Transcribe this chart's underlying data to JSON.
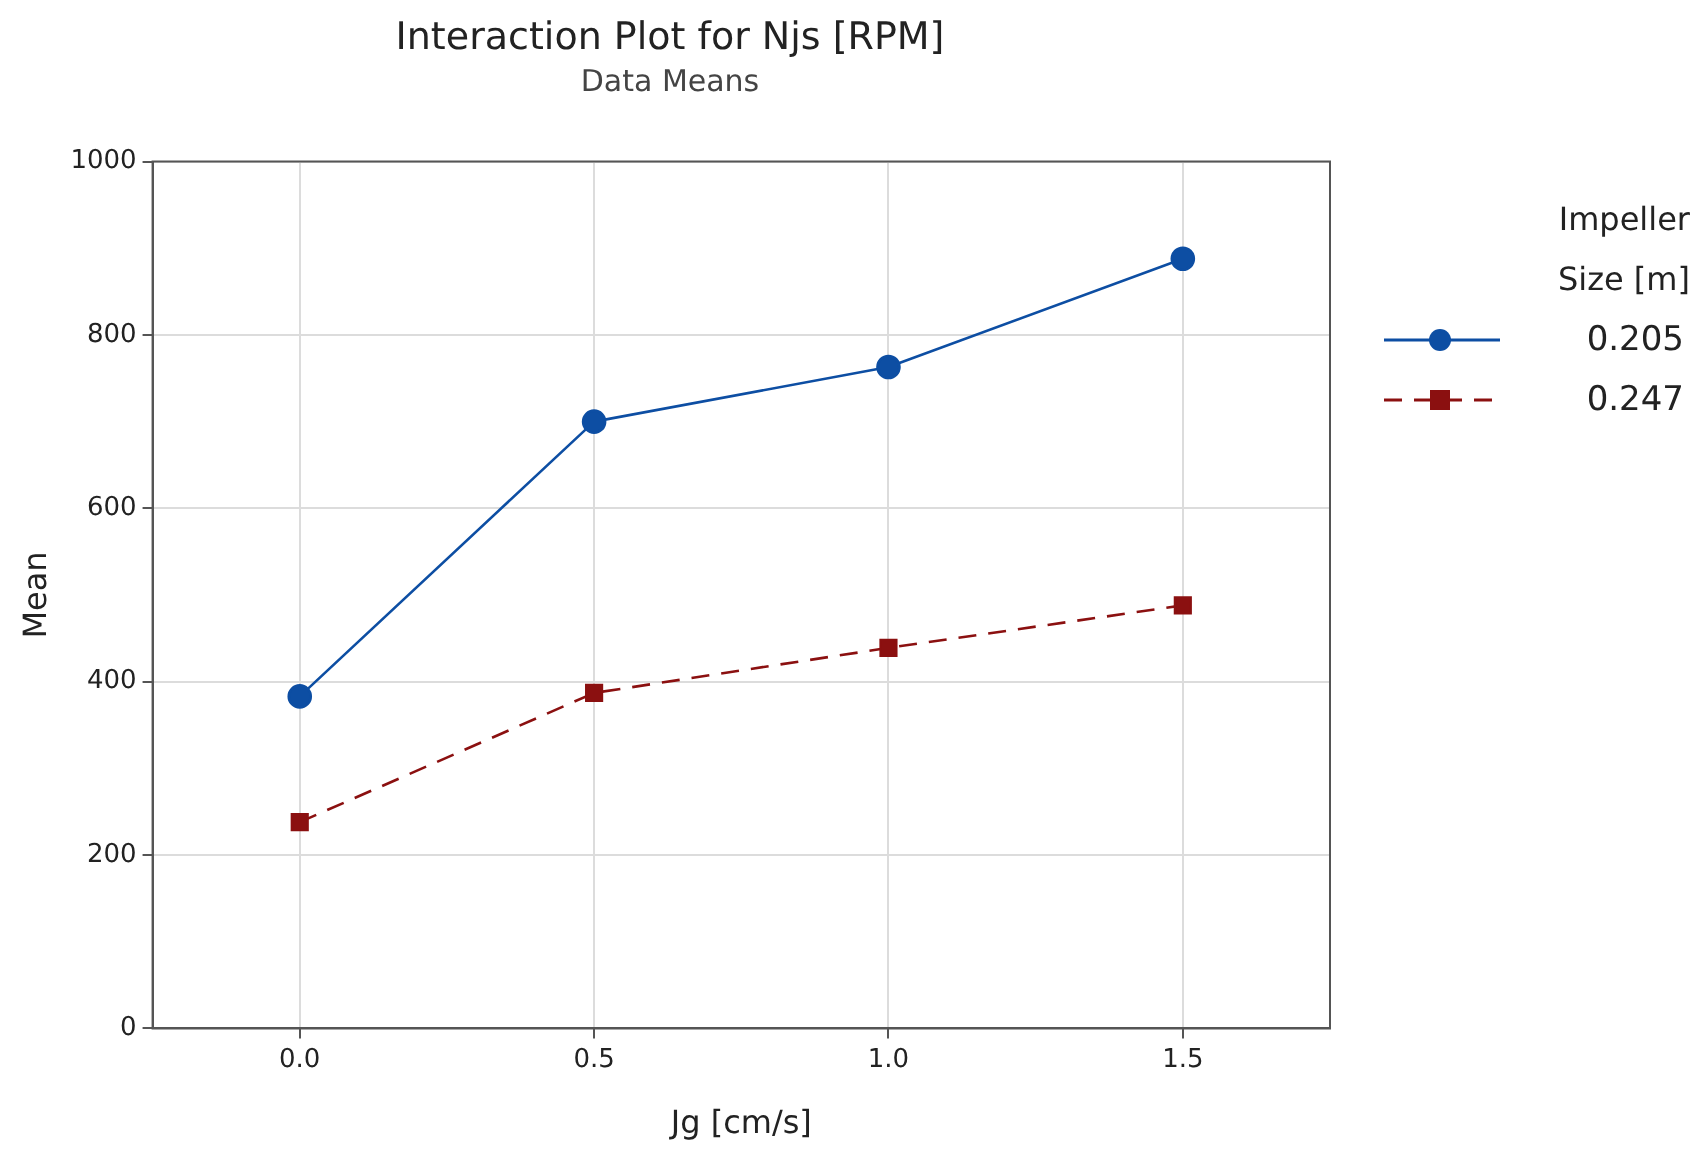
{
  "chart_data": {
    "type": "line",
    "title": "Interaction Plot for Njs [RPM]",
    "subtitle": "Data Means",
    "xlabel": "Jg [cm/s]",
    "ylabel": "Mean",
    "legend_title": "Impeller Size [m]",
    "x": [
      0,
      0.5,
      1,
      1.5
    ],
    "series": [
      {
        "name": "0.205",
        "color": "#0d4ea3",
        "values": [
          383,
          700,
          763,
          888
        ],
        "marker": "circle",
        "line_style": "solid"
      },
      {
        "name": "0.247",
        "color": "#8b1010",
        "values": [
          238,
          387,
          439,
          488
        ],
        "marker": "square",
        "line_style": "dashed"
      }
    ],
    "xlim": [
      -0.25,
      1.75
    ],
    "xticks": [
      {
        "value": 0,
        "label": "0.0"
      },
      {
        "value": 0.5,
        "label": "0.5"
      },
      {
        "value": 1,
        "label": "1.0"
      },
      {
        "value": 1.5,
        "label": "1.5"
      }
    ],
    "ylim": [
      0,
      1000
    ],
    "yticks": [
      0,
      200,
      400,
      600,
      800,
      1000
    ],
    "grid": true,
    "legend": "right"
  }
}
